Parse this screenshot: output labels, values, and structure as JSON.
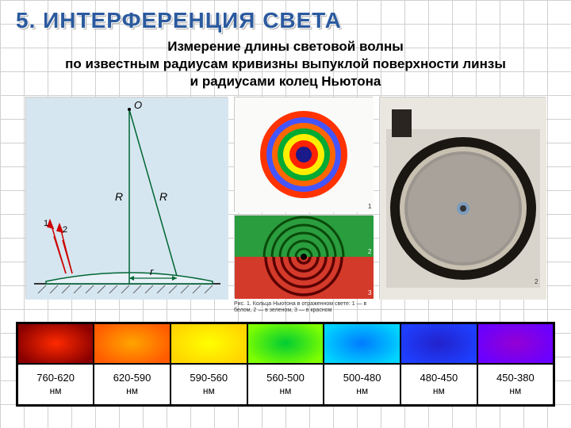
{
  "title": "5. ИНТЕРФЕРЕНЦИЯ СВЕТА",
  "subtitle_line1": "Измерение длины световой волны",
  "subtitle_line2": "по известным радиусам кривизны выпуклой поверхности линзы",
  "subtitle_line3": "и радиусами колец Ньютона",
  "lens_diagram": {
    "background": "#d6e6f0",
    "point_label": "O",
    "radius_label": "R",
    "r_label": "r",
    "ray1_label": "1",
    "ray2_label": "2",
    "line_color": "#006633",
    "ray_color": "#cc0000"
  },
  "rings": {
    "colors": [
      "#1a1a8a",
      "#ff2200",
      "#ffee00",
      "#00aa33",
      "#ff6600",
      "#cc0000",
      "#4444ff"
    ]
  },
  "green_red": {
    "top_color": "#2a9d3e",
    "bottom_color": "#d43a2a",
    "ring_color_top": "#0a4a0a",
    "ring_color_bottom": "#660000"
  },
  "caption_text": "Рис. 1. Кольца Ньютона в отраженном свете: 1 — в белом, 2 — в зеленом, 3 — в красном",
  "photo": {
    "bg": "#5a5550",
    "ring_outer": "#2a2520",
    "lens_gray": "#9a958e"
  },
  "spectrum": {
    "unit": "нм",
    "cells": [
      {
        "range": "760-620",
        "colors": [
          "#8a0000",
          "#ff2a00"
        ]
      },
      {
        "range": "620-590",
        "colors": [
          "#ff5a00",
          "#ffa500"
        ]
      },
      {
        "range": "590-560",
        "colors": [
          "#ffd400",
          "#ffff00"
        ]
      },
      {
        "range": "560-500",
        "colors": [
          "#7fff00",
          "#00cc33"
        ]
      },
      {
        "range": "500-480",
        "colors": [
          "#00d4ff",
          "#007bff"
        ]
      },
      {
        "range": "480-450",
        "colors": [
          "#1e3fff",
          "#2222cc"
        ]
      },
      {
        "range": "450-380",
        "colors": [
          "#6a00ff",
          "#9400d3"
        ]
      }
    ]
  }
}
